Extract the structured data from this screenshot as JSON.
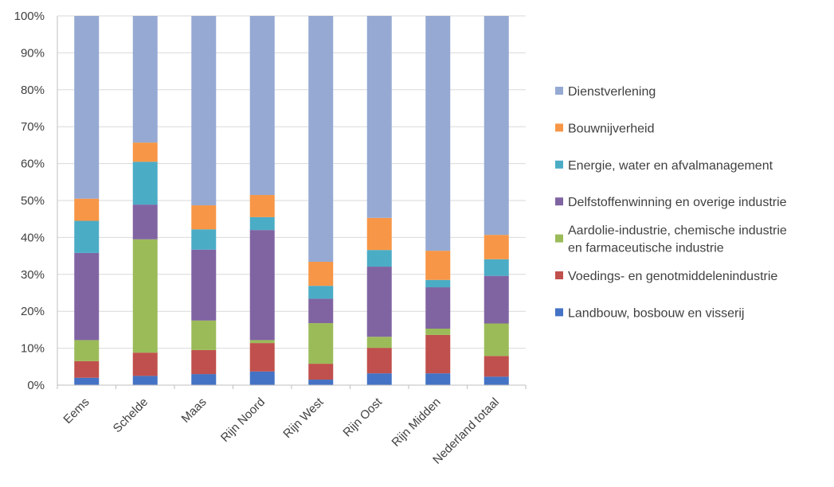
{
  "chart_data": {
    "type": "bar",
    "stacked": "percent",
    "grid": true,
    "legend_placement": "right",
    "ylim": [
      0,
      100
    ],
    "y_ticks": [
      "0%",
      "10%",
      "20%",
      "30%",
      "40%",
      "50%",
      "60%",
      "70%",
      "80%",
      "90%",
      "100%"
    ],
    "categories": [
      "Eems",
      "Schelde",
      "Maas",
      "Rijn Noord",
      "Rijn West",
      "Rijn Oost",
      "Rijn Midden",
      "Nederland totaal"
    ],
    "series": [
      {
        "name": "Landbouw, bosbouw en visserij",
        "color": "#4472C4",
        "values": [
          2.0,
          2.5,
          3.0,
          3.7,
          1.5,
          3.2,
          3.2,
          2.3
        ]
      },
      {
        "name": "Voedings- en genotmiddelenindustrie",
        "color": "#C0504D",
        "values": [
          4.5,
          6.3,
          6.5,
          7.7,
          4.3,
          6.9,
          10.4,
          5.6
        ]
      },
      {
        "name": "Aardolie-industrie, chemische industrie en farmaceutische industrie",
        "color": "#9BBB59",
        "values": [
          5.7,
          30.7,
          8.0,
          0.8,
          11.0,
          3.0,
          1.7,
          8.8
        ]
      },
      {
        "name": "Delfstoffenwinning en overige industrie",
        "color": "#8064A2",
        "values": [
          23.6,
          9.4,
          19.2,
          29.8,
          6.6,
          19.0,
          11.2,
          12.9
        ]
      },
      {
        "name": "Energie, water en afvalmanagement",
        "color": "#4BACC6",
        "values": [
          8.7,
          11.6,
          5.5,
          3.5,
          3.5,
          4.5,
          2.0,
          4.5
        ]
      },
      {
        "name": "Bouwnijverheid",
        "color": "#F79646",
        "values": [
          6.0,
          5.2,
          6.5,
          6.0,
          6.5,
          8.7,
          7.9,
          6.6
        ]
      },
      {
        "name": "Dienstverlening",
        "color": "#95A9D3",
        "values": [
          49.5,
          34.3,
          51.3,
          48.5,
          66.6,
          54.7,
          63.6,
          59.3
        ]
      }
    ],
    "legend_lines": {
      "Aardolie-industrie, chemische industrie en farmaceutische industrie": [
        "Aardolie-industrie, chemische industrie",
        "en farmaceutische industrie"
      ]
    }
  }
}
